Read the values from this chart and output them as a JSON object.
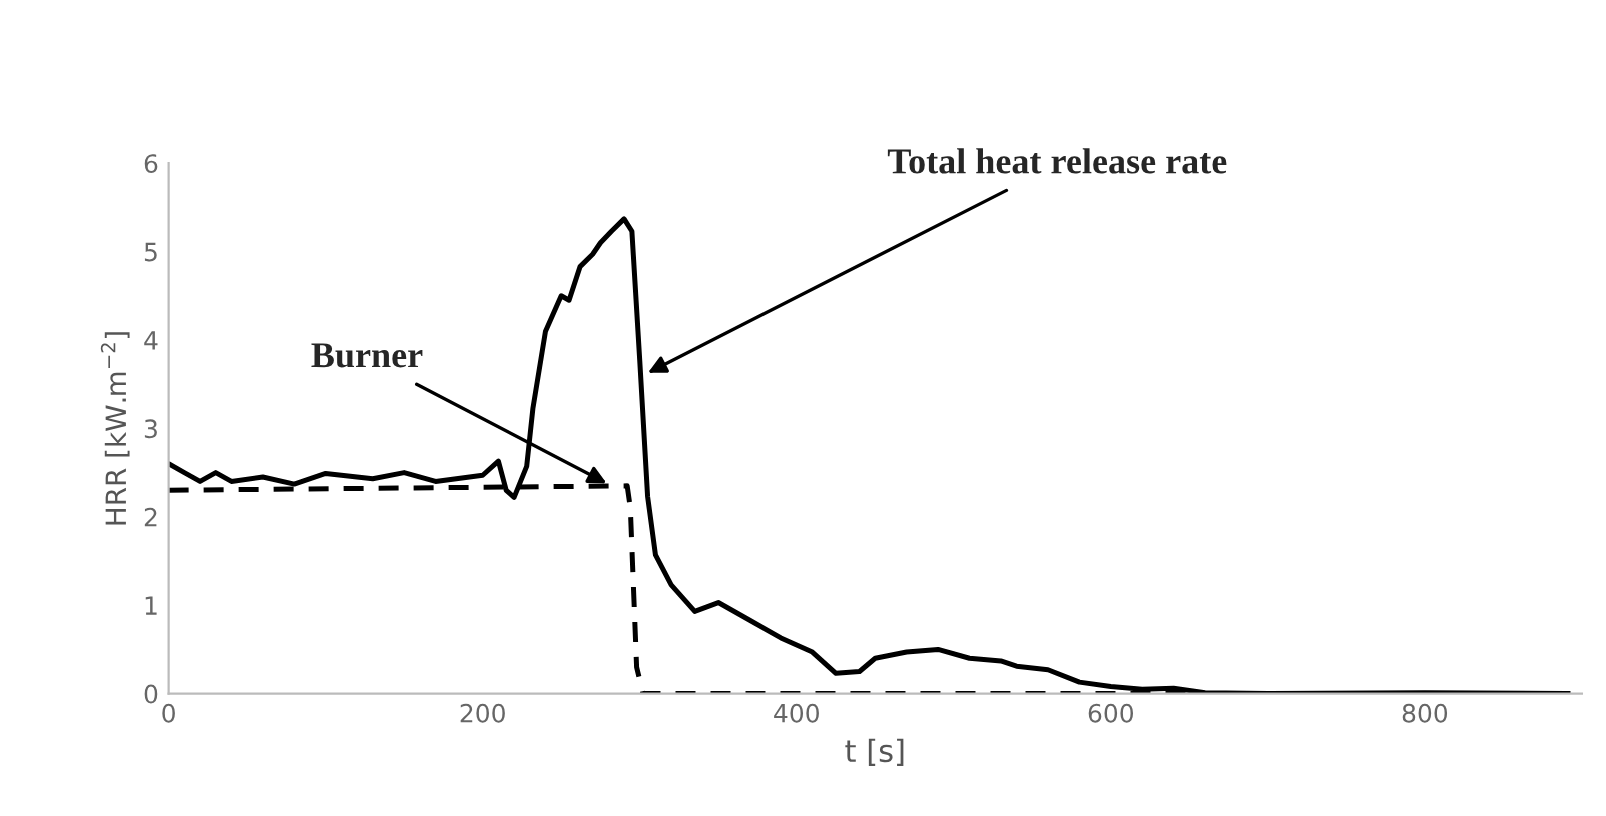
{
  "chart_data": {
    "type": "line",
    "xlabel": "t [s]",
    "ylabel": "HRR [kW.m$^{−2}$]",
    "xlim": [
      0,
      900
    ],
    "xticks": [
      0,
      200,
      400,
      600,
      800
    ],
    "ylim": [
      0,
      6
    ],
    "yticks": [
      0,
      1,
      2,
      3,
      4,
      5,
      6
    ],
    "grid": false,
    "marker": "none",
    "series": [
      {
        "color": "#000000",
        "line_style": "solid",
        "x": [
          0,
          10,
          20,
          30,
          40,
          60,
          80,
          100,
          130,
          150,
          170,
          200,
          210,
          215,
          220,
          228,
          232,
          240,
          250,
          255,
          262,
          270,
          275,
          282,
          290,
          295,
          300,
          305,
          310,
          320,
          335,
          350,
          370,
          390,
          410,
          425,
          440,
          450,
          470,
          490,
          510,
          530,
          540,
          560,
          580,
          600,
          620,
          640,
          660,
          700,
          800,
          890
        ],
        "values": [
          2.6,
          2.5,
          2.4,
          2.5,
          2.4,
          2.45,
          2.37,
          2.49,
          2.43,
          2.5,
          2.4,
          2.47,
          2.63,
          2.3,
          2.22,
          2.57,
          3.23,
          4.1,
          4.5,
          4.45,
          4.83,
          4.97,
          5.1,
          5.23,
          5.37,
          5.23,
          3.77,
          2.23,
          1.57,
          1.23,
          0.93,
          1.03,
          0.83,
          0.63,
          0.47,
          0.23,
          0.25,
          0.4,
          0.47,
          0.5,
          0.4,
          0.37,
          0.31,
          0.27,
          0.13,
          0.08,
          0.05,
          0.06,
          0.01,
          0,
          0.01,
          0
        ]
      },
      {
        "color": "#000000",
        "line_style": "dashed",
        "x": [
          0,
          292,
          294,
          298,
          302,
          900
        ],
        "values": [
          2.3,
          2.35,
          2.1,
          0.3,
          0,
          0
        ]
      }
    ],
    "annotations": [
      {
        "text": "Burner",
        "x": 282,
        "y": 2.35
      },
      {
        "text": "Total heat release rate",
        "x": 302,
        "y": 3.6
      }
    ]
  }
}
